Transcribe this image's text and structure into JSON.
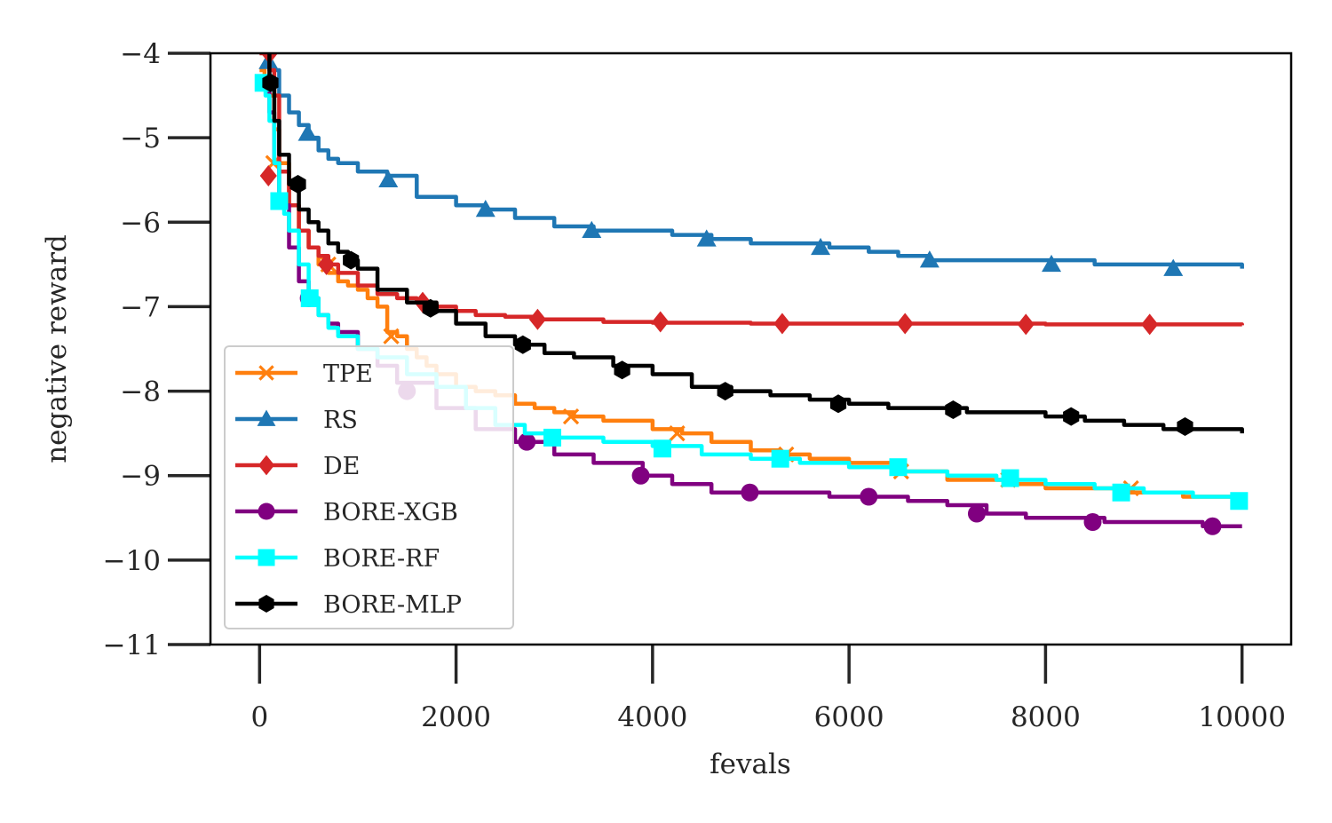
{
  "chart_data": {
    "type": "line",
    "xlabel": "fevals",
    "ylabel": "negative reward",
    "xlim": [
      -500,
      10500
    ],
    "ylim": [
      -11,
      -4
    ],
    "xticks": [
      0,
      2000,
      4000,
      6000,
      8000,
      10000
    ],
    "xtick_labels": [
      "0",
      "2000",
      "4000",
      "6000",
      "8000",
      "10000"
    ],
    "yticks": [
      -11,
      -10,
      -9,
      -8,
      -7,
      -6,
      -5,
      -4
    ],
    "ytick_labels": [
      "−11",
      "−10",
      "−9",
      "−8",
      "−7",
      "−6",
      "−5",
      "−4"
    ],
    "grid": false,
    "legend_position": "lower-left",
    "series": [
      {
        "name": "TPE",
        "color": "#ff7f0e",
        "marker": "x",
        "x": [
          0,
          50,
          100,
          150,
          200,
          300,
          400,
          500,
          600,
          700,
          800,
          900,
          1000,
          1100,
          1200,
          1300,
          1400,
          1500,
          1600,
          1700,
          1800,
          2000,
          2200,
          2400,
          2600,
          2800,
          3000,
          3200,
          3500,
          4000,
          4300,
          4600,
          5000,
          5300,
          5600,
          6000,
          6500,
          7000,
          7600,
          8000,
          8800,
          9400,
          10000
        ],
        "y": [
          -4.2,
          -4.3,
          -4.5,
          -4.9,
          -5.3,
          -5.8,
          -6.1,
          -6.3,
          -6.5,
          -6.6,
          -6.7,
          -6.75,
          -6.8,
          -6.9,
          -7.0,
          -7.3,
          -7.35,
          -7.5,
          -7.6,
          -7.7,
          -7.8,
          -7.95,
          -8.0,
          -8.05,
          -8.15,
          -8.2,
          -8.25,
          -8.3,
          -8.35,
          -8.45,
          -8.5,
          -8.6,
          -8.7,
          -8.75,
          -8.8,
          -8.85,
          -8.95,
          -9.05,
          -9.1,
          -9.15,
          -9.2,
          -9.25,
          -9.3
        ],
        "marker_x": [
          140,
          700,
          1340,
          3170,
          4250,
          5360,
          6530,
          7620,
          8870
        ],
        "marker_y": [
          -5.3,
          -6.5,
          -7.35,
          -8.3,
          -8.5,
          -8.75,
          -8.95,
          -9.05,
          -9.15
        ]
      },
      {
        "name": "RS",
        "color": "#1f77b4",
        "marker": "triangle",
        "x": [
          0,
          100,
          200,
          300,
          400,
          500,
          600,
          700,
          800,
          1000,
          1300,
          1600,
          2000,
          2300,
          2600,
          3000,
          3400,
          3800,
          4200,
          4600,
          5000,
          5400,
          5800,
          6200,
          6500,
          6800,
          7200,
          8000,
          8500,
          9000,
          9500,
          10000
        ],
        "y": [
          -3.8,
          -4.2,
          -4.5,
          -4.7,
          -4.85,
          -5.0,
          -5.15,
          -5.25,
          -5.3,
          -5.4,
          -5.45,
          -5.7,
          -5.8,
          -5.85,
          -5.95,
          -6.05,
          -6.1,
          -6.1,
          -6.15,
          -6.2,
          -6.25,
          -6.25,
          -6.3,
          -6.35,
          -6.4,
          -6.45,
          -6.45,
          -6.45,
          -6.5,
          -6.5,
          -6.5,
          -6.55
        ],
        "marker_x": [
          90,
          490,
          1310,
          2300,
          3380,
          4550,
          5710,
          6820,
          8060,
          9300
        ],
        "marker_y": [
          -4.1,
          -4.95,
          -5.5,
          -5.85,
          -6.1,
          -6.2,
          -6.3,
          -6.45,
          -6.5,
          -6.55
        ]
      },
      {
        "name": "DE",
        "color": "#d62728",
        "marker": "diamond",
        "x": [
          0,
          50,
          100,
          150,
          200,
          300,
          400,
          500,
          600,
          700,
          800,
          1000,
          1200,
          1400,
          1600,
          1800,
          2000,
          2200,
          2500,
          2800,
          3500,
          4000,
          5000,
          6000,
          7000,
          8000,
          9000,
          10000
        ],
        "y": [
          -4.0,
          -4.0,
          -4.2,
          -4.5,
          -5.4,
          -5.8,
          -6.1,
          -6.3,
          -6.4,
          -6.5,
          -6.6,
          -6.75,
          -6.85,
          -6.9,
          -6.95,
          -7.0,
          -7.05,
          -7.1,
          -7.12,
          -7.15,
          -7.18,
          -7.19,
          -7.2,
          -7.2,
          -7.2,
          -7.21,
          -7.21,
          -7.22
        ],
        "marker_x": [
          100,
          90,
          680,
          1660,
          2830,
          4080,
          5320,
          6570,
          7800,
          9060
        ],
        "marker_y": [
          -4.0,
          -5.45,
          -6.5,
          -6.95,
          -7.15,
          -7.18,
          -7.2,
          -7.2,
          -7.21,
          -7.21
        ]
      },
      {
        "name": "BORE-XGB",
        "color": "#800080",
        "marker": "circle",
        "x": [
          0,
          50,
          100,
          150,
          200,
          300,
          400,
          500,
          600,
          700,
          800,
          1000,
          1200,
          1400,
          1800,
          2200,
          2600,
          3000,
          3400,
          3900,
          4200,
          4600,
          5000,
          5400,
          5800,
          6200,
          6600,
          7000,
          7400,
          7800,
          8200,
          8600,
          9000,
          9600,
          10000
        ],
        "y": [
          -4.3,
          -4.4,
          -4.7,
          -5.3,
          -5.8,
          -6.3,
          -6.7,
          -6.9,
          -7.1,
          -7.2,
          -7.3,
          -7.5,
          -7.7,
          -7.9,
          -8.2,
          -8.45,
          -8.6,
          -8.75,
          -8.85,
          -9.0,
          -9.1,
          -9.2,
          -9.2,
          -9.2,
          -9.25,
          -9.25,
          -9.3,
          -9.35,
          -9.45,
          -9.5,
          -9.5,
          -9.55,
          -9.55,
          -9.6,
          -9.6
        ],
        "marker_x": [
          500,
          1500,
          2720,
          3880,
          4990,
          6200,
          7300,
          8480,
          9700
        ],
        "marker_y": [
          -6.9,
          -8.0,
          -8.6,
          -9.0,
          -9.2,
          -9.25,
          -9.45,
          -9.55,
          -9.6
        ]
      },
      {
        "name": "BORE-RF",
        "color": "#00ffff",
        "marker": "square",
        "x": [
          0,
          30,
          60,
          100,
          150,
          200,
          250,
          300,
          400,
          500,
          600,
          700,
          800,
          1000,
          1200,
          1500,
          1800,
          2100,
          2400,
          2700,
          3000,
          3500,
          4000,
          4500,
          5000,
          5500,
          6000,
          6500,
          7000,
          7500,
          8000,
          8500,
          9000,
          9500,
          10000
        ],
        "y": [
          -4.3,
          -4.35,
          -4.5,
          -4.8,
          -5.3,
          -5.75,
          -5.9,
          -6.1,
          -6.5,
          -6.9,
          -7.1,
          -7.25,
          -7.35,
          -7.5,
          -7.6,
          -7.8,
          -7.95,
          -8.2,
          -8.4,
          -8.5,
          -8.55,
          -8.6,
          -8.65,
          -8.75,
          -8.8,
          -8.85,
          -8.9,
          -8.95,
          -9.0,
          -9.05,
          -9.1,
          -9.15,
          -9.2,
          -9.25,
          -9.3
        ],
        "marker_x": [
          40,
          200,
          510,
          2980,
          4100,
          5300,
          6500,
          7640,
          8770,
          9970
        ],
        "marker_y": [
          -4.35,
          -5.75,
          -6.9,
          -8.55,
          -8.68,
          -8.8,
          -8.9,
          -9.03,
          -9.2,
          -9.3
        ]
      },
      {
        "name": "BORE-MLP",
        "color": "#000000",
        "marker": "hexagon",
        "x": [
          0,
          50,
          100,
          150,
          200,
          300,
          400,
          500,
          600,
          700,
          800,
          900,
          1000,
          1200,
          1500,
          1800,
          2000,
          2300,
          2600,
          2900,
          3200,
          3600,
          4000,
          4400,
          4800,
          5200,
          5600,
          6000,
          6400,
          6800,
          7200,
          7600,
          8000,
          8400,
          8800,
          9200,
          9600,
          10000
        ],
        "y": [
          -3.6,
          -3.7,
          -4.35,
          -4.8,
          -5.2,
          -5.55,
          -5.85,
          -6.0,
          -6.1,
          -6.25,
          -6.35,
          -6.45,
          -6.55,
          -6.8,
          -6.95,
          -7.05,
          -7.2,
          -7.35,
          -7.45,
          -7.55,
          -7.6,
          -7.7,
          -7.8,
          -7.95,
          -8.0,
          -8.05,
          -8.1,
          -8.15,
          -8.2,
          -8.2,
          -8.25,
          -8.25,
          -8.3,
          -8.35,
          -8.4,
          -8.45,
          -8.45,
          -8.5
        ],
        "marker_x": [
          110,
          390,
          930,
          1740,
          2680,
          3690,
          4740,
          5890,
          7060,
          8260,
          9420
        ],
        "marker_y": [
          -4.35,
          -5.55,
          -6.45,
          -7.02,
          -7.45,
          -7.75,
          -8.0,
          -8.15,
          -8.22,
          -8.3,
          -8.42
        ]
      }
    ]
  }
}
